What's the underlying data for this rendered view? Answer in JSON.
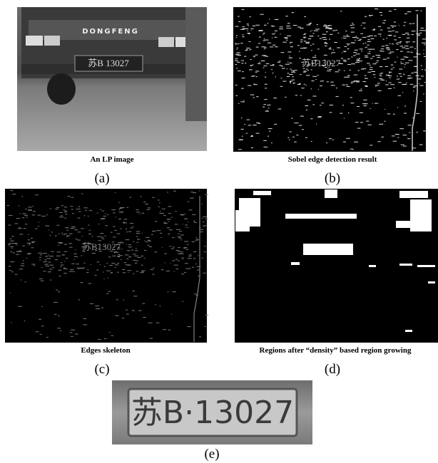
{
  "panels": [
    {
      "caption": "An LP image",
      "label": "(a)",
      "badge": "DONGFENG",
      "plate": "苏B 13027"
    },
    {
      "caption": "Sobel edge detection result",
      "label": "(b)",
      "plate": "苏B13027"
    },
    {
      "caption": "Edges skeleton",
      "label": "(c)",
      "plate": "苏B13027"
    },
    {
      "caption": "Regions after “density” based region growing",
      "label": "(d)"
    },
    {
      "label": "(e)",
      "plate": "苏B·13027"
    }
  ]
}
